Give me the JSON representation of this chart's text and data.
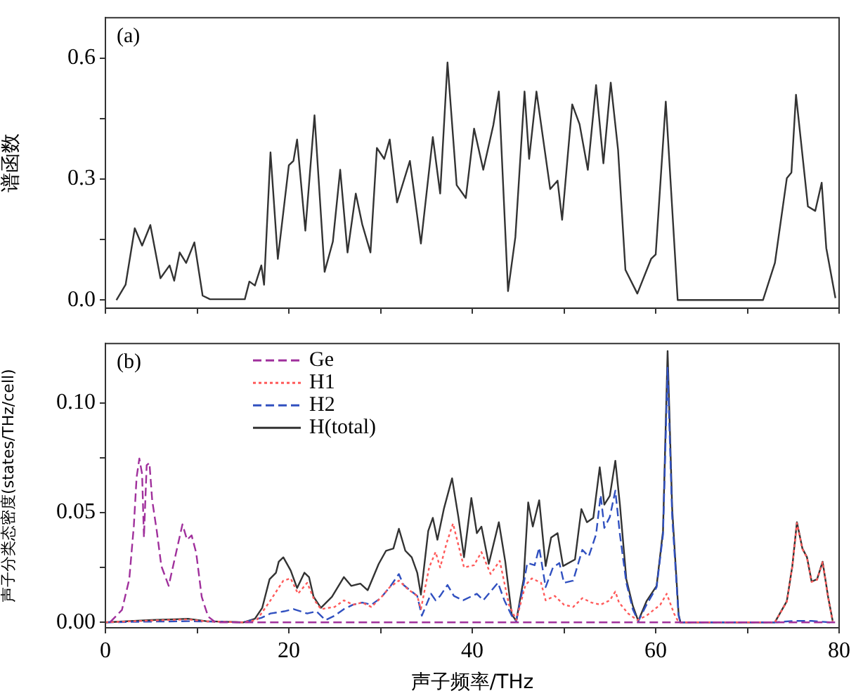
{
  "chart_data": [
    {
      "type": "line",
      "ylabel": "谱函数",
      "annotations": [
        "(a)"
      ],
      "marker": "none",
      "grid": false,
      "legend": false,
      "tick_labels": "y",
      "xlim": [
        0,
        80
      ],
      "xticks": [
        {
          "value": 0,
          "label": null
        },
        {
          "value": 10,
          "label": null
        },
        {
          "value": 20,
          "label": null
        },
        {
          "value": 30,
          "label": null
        },
        {
          "value": 40,
          "label": null
        },
        {
          "value": 50,
          "label": null
        },
        {
          "value": 60,
          "label": null
        },
        {
          "value": 70,
          "label": null
        },
        {
          "value": 80,
          "label": null
        }
      ],
      "ylim": [
        -0.02,
        0.7
      ],
      "yticks": [
        {
          "value": 0,
          "label": "0.0"
        },
        {
          "value": 0.15,
          "label": null
        },
        {
          "value": 0.3,
          "label": "0.3"
        },
        {
          "value": 0.45,
          "label": null
        },
        {
          "value": 0.6,
          "label": "0.6"
        }
      ],
      "series": [
        {
          "color": "#333333",
          "line_style": "solid",
          "x": [
            1.2,
            2.2,
            3.2,
            4.0,
            4.9,
            6.0,
            7.0,
            7.5,
            8.1,
            8.8,
            9.7,
            10.6,
            11.4,
            15.2,
            15.7,
            16.3,
            17.0,
            17.3,
            18.0,
            18.8,
            20.0,
            20.5,
            20.9,
            21.8,
            22.8,
            23.9,
            24.8,
            25.6,
            26.4,
            27.3,
            28.0,
            28.9,
            29.6,
            30.4,
            31.0,
            31.8,
            33.2,
            34.4,
            35.7,
            36.5,
            37.3,
            38.3,
            39.3,
            40.2,
            41.2,
            42.3,
            42.9,
            43.9,
            44.7,
            45.7,
            46.2,
            47.0,
            48.5,
            49.3,
            49.8,
            50.9,
            51.7,
            52.6,
            53.5,
            54.3,
            55.1,
            55.9,
            56.7,
            58.0,
            59.5,
            60.0,
            61.1,
            62.4,
            71.7,
            73.0,
            74.3,
            74.8,
            75.3,
            76.6,
            77.4,
            78.1,
            78.6,
            79.6
          ],
          "values": [
            0,
            0.038,
            0.178,
            0.135,
            0.186,
            0.054,
            0.086,
            0.048,
            0.118,
            0.092,
            0.143,
            0.011,
            0.002,
            0.002,
            0.046,
            0.036,
            0.086,
            0.038,
            0.366,
            0.102,
            0.334,
            0.345,
            0.398,
            0.172,
            0.458,
            0.07,
            0.145,
            0.323,
            0.118,
            0.264,
            0.188,
            0.118,
            0.377,
            0.35,
            0.398,
            0.242,
            0.345,
            0.14,
            0.404,
            0.264,
            0.589,
            0.285,
            0.253,
            0.425,
            0.323,
            0.434,
            0.517,
            0.022,
            0.156,
            0.517,
            0.35,
            0.517,
            0.275,
            0.296,
            0.199,
            0.485,
            0.436,
            0.323,
            0.533,
            0.339,
            0.539,
            0.372,
            0.075,
            0.016,
            0.102,
            0.113,
            0.492,
            0,
            0,
            0.092,
            0.302,
            0.316,
            0.509,
            0.232,
            0.221,
            0.291,
            0.129,
            0.005
          ]
        }
      ]
    },
    {
      "type": "line",
      "xlabel": "声子频率/THz",
      "ylabel": "声子分类态密度(states/THz/cell)",
      "annotations": [
        "(b)"
      ],
      "marker": "none",
      "grid": false,
      "legend": "top left",
      "xlim": [
        0,
        80
      ],
      "xticks": [
        0,
        {
          "value": 10,
          "label": null
        },
        20,
        {
          "value": 30,
          "label": null
        },
        40,
        {
          "value": 50,
          "label": null
        },
        60,
        {
          "value": 70,
          "label": null
        },
        80
      ],
      "ylim": [
        -0.0025,
        0.127
      ],
      "yticks": [
        {
          "value": 0,
          "label": "0.00"
        },
        {
          "value": 0.025,
          "label": null
        },
        {
          "value": 0.05,
          "label": "0.05"
        },
        {
          "value": 0.075,
          "label": null
        },
        {
          "value": 0.1,
          "label": "0.10"
        }
      ],
      "series": [
        {
          "name": "Ge",
          "color": "#a0309c",
          "line_style": "dashed",
          "x": [
            0.5,
            1.8,
            2.6,
            3.1,
            3.4,
            3.7,
            4.0,
            4.2,
            4.5,
            4.8,
            5.1,
            5.6,
            6.1,
            6.9,
            7.7,
            8.4,
            8.9,
            9.4,
            9.9,
            10.5,
            11.2,
            12.0,
            80
          ],
          "values": [
            0,
            0.0056,
            0.0196,
            0.044,
            0.066,
            0.0746,
            0.0676,
            0.0386,
            0.0716,
            0.0726,
            0.0556,
            0.0416,
            0.0256,
            0.0166,
            0.0316,
            0.0446,
            0.0376,
            0.0396,
            0.0316,
            0.0116,
            0.0026,
            0,
            0
          ]
        },
        {
          "name": "H1",
          "color": "#ff5a5a",
          "line_style": "dotted",
          "x": [
            0,
            5,
            9,
            11,
            15,
            16.5,
            18,
            19.4,
            20.2,
            21,
            22,
            22.8,
            23.5,
            25,
            26,
            27,
            28,
            29,
            30,
            31,
            32,
            33,
            34,
            34.4,
            35.3,
            36,
            36.5,
            37.2,
            37.9,
            38.5,
            39.1,
            40.2,
            41,
            42,
            43,
            44,
            44.8,
            45.8,
            46.5,
            47.5,
            48,
            49,
            50,
            51,
            52,
            53,
            54,
            55,
            55.6,
            56,
            57,
            58,
            59,
            60.5,
            61.2,
            62,
            62.5,
            73.0,
            74.3,
            74.9,
            75.4,
            76.0,
            76.5,
            77.0,
            77.6,
            78.2,
            78.8,
            79.3
          ],
          "values": [
            0,
            0.0008,
            0.0013,
            0.0004,
            0,
            0.001,
            0.01,
            0.019,
            0.02,
            0.013,
            0.018,
            0.01,
            0.006,
            0.007,
            0.01,
            0.008,
            0.009,
            0.007,
            0.011,
            0.016,
            0.019,
            0.015,
            0.012,
            0.006,
            0.025,
            0.032,
            0.025,
            0.036,
            0.045,
            0.035,
            0.025,
            0.026,
            0.032,
            0.022,
            0.028,
            0.008,
            0.001,
            0.017,
            0.02,
            0.018,
            0.01,
            0.012,
            0.008,
            0.007,
            0.011,
            0.009,
            0.008,
            0.01,
            0.014,
            0.009,
            0.004,
            0.001,
            0.003,
            0.008,
            0.013,
            0.004,
            0,
            0,
            0.0094,
            0.0254,
            0.0452,
            0.0334,
            0.0294,
            0.0184,
            0.0194,
            0.0274,
            0.0114,
            0.0005
          ]
        },
        {
          "name": "H2",
          "color": "#3050c0",
          "line_style": "dashed",
          "x": [
            0,
            5,
            9,
            15,
            17,
            18,
            19.5,
            20.5,
            22,
            23,
            24,
            25,
            26,
            27,
            28,
            29,
            30,
            31,
            32,
            32.5,
            34,
            34.5,
            35.5,
            36,
            36.5,
            37.3,
            38,
            39,
            40.5,
            41.2,
            42,
            42.8,
            43.5,
            44.3,
            44.8,
            45.5,
            46,
            46.8,
            47.3,
            48,
            48.8,
            49.5,
            50,
            51,
            52,
            52.7,
            53.5,
            54,
            54.4,
            55,
            55.6,
            56.1,
            56.8,
            57.5,
            58.1,
            59,
            60.1,
            60.8,
            61.3,
            61.8,
            62.5,
            62.7,
            73,
            75,
            77,
            79
          ],
          "values": [
            0,
            0.0003,
            0.0005,
            0,
            0.002,
            0.004,
            0.005,
            0.006,
            0.004,
            0.005,
            0.001,
            0.003,
            0.006,
            0.008,
            0.009,
            0.008,
            0.011,
            0.016,
            0.022,
            0.017,
            0.012,
            0.003,
            0.013,
            0.01,
            0.012,
            0.017,
            0.012,
            0.01,
            0.013,
            0.01,
            0.014,
            0.018,
            0.01,
            0.003,
            0.0005,
            0.015,
            0.027,
            0.026,
            0.034,
            0.016,
            0.025,
            0.027,
            0.018,
            0.019,
            0.033,
            0.03,
            0.04,
            0.058,
            0.043,
            0.048,
            0.06,
            0.04,
            0.018,
            0.006,
            0.0005,
            0.008,
            0.016,
            0.04,
            0.116,
            0.048,
            0.003,
            0,
            0,
            0.0006,
            0.0006,
            0
          ]
        },
        {
          "name": "H(total)",
          "color": "#333333",
          "line_style": "solid",
          "x": [
            0,
            5,
            9,
            11,
            15.1,
            16.3,
            17.1,
            17.9,
            18.6,
            18.9,
            19.4,
            20.2,
            20.9,
            21.7,
            22.2,
            22.7,
            23.5,
            24.7,
            26.0,
            26.8,
            27.8,
            28.6,
            29.8,
            30.6,
            31.4,
            32.0,
            32.7,
            33.4,
            34.0,
            34.4,
            35.2,
            35.7,
            36.2,
            36.9,
            37.8,
            38.5,
            39.1,
            39.9,
            40.5,
            41.0,
            41.8,
            42.9,
            43.6,
            44.3,
            44.8,
            45.6,
            46.1,
            46.6,
            47.3,
            48.0,
            48.6,
            49.3,
            49.9,
            51.2,
            51.9,
            52.5,
            53.2,
            53.9,
            54.4,
            55.0,
            55.6,
            56.1,
            56.8,
            57.5,
            58.1,
            59.0,
            60.1,
            60.8,
            61.3,
            61.8,
            62.5,
            62.7,
            73.0,
            74.3,
            74.9,
            75.4,
            76.0,
            76.5,
            77.0,
            77.6,
            78.2,
            78.8,
            79.3
          ],
          "values": [
            0,
            0.001,
            0.0016,
            0.0005,
            0,
            0.0016,
            0.0066,
            0.0196,
            0.0226,
            0.0276,
            0.0296,
            0.0236,
            0.0156,
            0.0226,
            0.0206,
            0.0116,
            0.0066,
            0.0116,
            0.0206,
            0.0166,
            0.0176,
            0.0146,
            0.0266,
            0.0326,
            0.0336,
            0.0426,
            0.0326,
            0.0296,
            0.0226,
            0.0126,
            0.0416,
            0.0476,
            0.0376,
            0.0516,
            0.0656,
            0.0476,
            0.0296,
            0.0566,
            0.0406,
            0.0436,
            0.0266,
            0.0456,
            0.0276,
            0.0036,
            0.0006,
            0.0196,
            0.0546,
            0.0436,
            0.0556,
            0.0256,
            0.0386,
            0.0406,
            0.0256,
            0.0286,
            0.0516,
            0.0456,
            0.0476,
            0.0706,
            0.0536,
            0.0576,
            0.0736,
            0.0536,
            0.0196,
            0.0076,
            0.0006,
            0.0096,
            0.0166,
            0.0416,
            0.1236,
            0.0516,
            0.0036,
            0,
            0,
            0.0096,
            0.0256,
            0.0456,
            0.0336,
            0.0296,
            0.0186,
            0.0196,
            0.0276,
            0.0116,
            0.0006
          ]
        }
      ]
    }
  ]
}
